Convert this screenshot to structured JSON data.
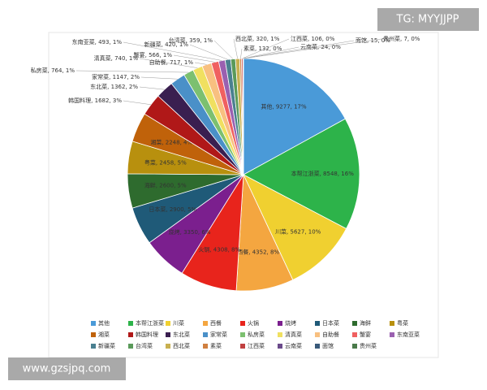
{
  "watermarks": [
    "TG: MYYJJPP",
    "www.gzsjpq.com"
  ],
  "chart_data": {
    "type": "pie",
    "categories": [
      "其他",
      "本帮江浙菜",
      "川菜",
      "西餐",
      "火锅",
      "烧烤",
      "日本菜",
      "海鲜",
      "粤菜",
      "湘菜",
      "韩国料理",
      "东北菜",
      "家常菜",
      "私房菜",
      "清真菜",
      "自助餐",
      "蟹宴",
      "东南亚菜",
      "新疆菜",
      "台湾菜",
      "西北菜",
      "素菜",
      "江西菜",
      "云南菜",
      "面馆",
      "贵州菜"
    ],
    "values": [
      9277,
      8548,
      5627,
      4352,
      4308,
      3350,
      2900,
      2600,
      2458,
      2248,
      1682,
      1362,
      1147,
      764,
      740,
      717,
      566,
      493,
      420,
      359,
      320,
      132,
      106,
      24,
      15,
      7
    ],
    "value_labels": [
      "其他, 9277, 17%",
      "本帮江浙菜, 8548, 16%",
      "川菜, 5627, 10%",
      "西餐, 4352, 8%",
      "火锅, 4308, 8%",
      "烧烤, 3350, 6%",
      "日本菜, 2900, 5%",
      "海鲜, 2600, 5%",
      "粤菜, 2458, 5%",
      "湘菜, 2248, 4%",
      "韩国料理, 1682, 3%",
      "东北菜, 1362, 2%",
      "家常菜, 1147, 2%",
      "私房菜, 764, 1%",
      "清真菜, 740, 1%",
      "自助餐, 717, 1%",
      "蟹宴, 566, 1%",
      "东南亚菜, 493, 1%",
      "新疆菜, 420, 1%",
      "台湾菜, 359, 1%",
      "西北菜, 320, 1%",
      "素菜, 132, 0%",
      "江西菜, 106, 0%",
      "云南菜, 24, 0%",
      "面馆, 15, 0%",
      "贵州菜, 7, 0%"
    ],
    "colors": [
      "#4a9ad8",
      "#2db34a",
      "#f0d030",
      "#f4a640",
      "#e8241c",
      "#7b1f8e",
      "#1f5a78",
      "#2e6b2e",
      "#b8900e",
      "#c0620a",
      "#b01818",
      "#3a1f50",
      "#4a90c8",
      "#7cc070",
      "#f0e060",
      "#f8c080",
      "#f06060",
      "#9a60b0",
      "#4a8090",
      "#5a9a5a",
      "#c8b050",
      "#d08040",
      "#c04040",
      "#6a4a8a",
      "#3a5a7a",
      "#4a7a4a"
    ]
  }
}
